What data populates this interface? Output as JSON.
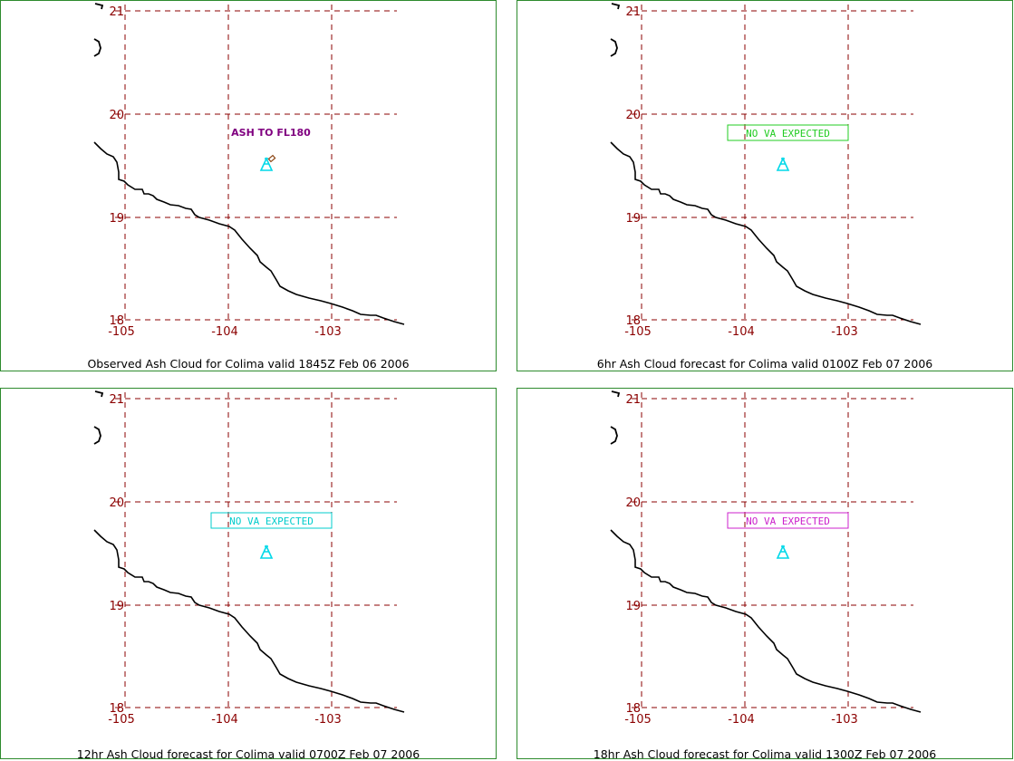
{
  "colors": {
    "grid": "#8b0000",
    "coast": "#000000",
    "volcano": "#00d8e8",
    "border": "#2e8b2e"
  },
  "axis_labels": {
    "lon": [
      "-105",
      "-104",
      "-103"
    ],
    "lat": [
      "18",
      "19",
      "20",
      "21"
    ]
  },
  "panels": [
    {
      "caption": "Observed Ash Cloud for Colima valid 1845Z Feb 06 2006",
      "label": "ASH TO FL180",
      "label_color": "#800080",
      "label_boxed": false,
      "volcano_icon": "volcano-icon"
    },
    {
      "caption": "6hr Ash Cloud forecast for Colima valid 0100Z Feb 07 2006",
      "label": "NO VA EXPECTED",
      "label_color": "#22cc22",
      "label_boxed": true,
      "volcano_icon": "volcano-icon"
    },
    {
      "caption": "12hr Ash Cloud forecast for Colima valid 0700Z Feb 07 2006",
      "label": "NO VA EXPECTED",
      "label_color": "#00cccc",
      "label_boxed": true,
      "volcano_icon": "volcano-icon"
    },
    {
      "caption": "18hr Ash Cloud forecast for Colima valid 1300Z Feb 07 2006",
      "label": "NO VA EXPECTED",
      "label_color": "#cc22cc",
      "label_boxed": true,
      "volcano_icon": "volcano-icon"
    }
  ]
}
